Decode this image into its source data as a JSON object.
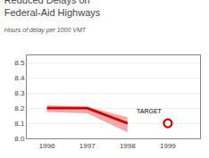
{
  "chart_data": {
    "type": "line",
    "title": "Reduced Delays on\nFederal-Aid Highways",
    "subtitle": "Hours of delay per 1000 VMT",
    "x": [
      1996,
      1997,
      1998
    ],
    "series": [
      {
        "values": [
          8.2,
          8.2,
          8.1
        ],
        "color": "#cc0000",
        "band_upper": [
          8.22,
          8.21,
          8.14
        ],
        "band_lower": [
          8.175,
          8.165,
          8.04
        ],
        "band_color": "#f0aaaa"
      }
    ],
    "target": {
      "x": 1999,
      "value": 8.1,
      "label": "TARGET",
      "color": "#cc0000",
      "marker": "circle-open"
    },
    "xlim": [
      1995.5,
      1999.8
    ],
    "xticks": [
      1996,
      1997,
      1998,
      1999
    ],
    "ylim": [
      8.0,
      8.55
    ],
    "yticks": [
      {
        "value": 8.0,
        "label": "8.0"
      },
      8.1,
      8.2,
      8.3,
      8.4,
      8.5
    ],
    "grid": "y"
  }
}
